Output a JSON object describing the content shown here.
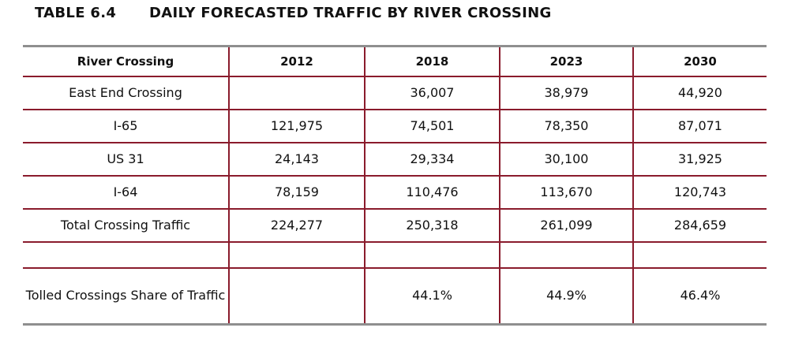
{
  "caption": {
    "number": "TABLE 6.4",
    "title": "DAILY FORECASTED TRAFFIC BY RIVER CROSSING"
  },
  "table": {
    "headers": [
      "River Crossing",
      "2012",
      "2018",
      "2023",
      "2030"
    ],
    "rows": [
      [
        "East End Crossing",
        "",
        "36,007",
        "38,979",
        "44,920"
      ],
      [
        "I-65",
        "121,975",
        "74,501",
        "78,350",
        "87,071"
      ],
      [
        "US 31",
        "24,143",
        "29,334",
        "30,100",
        "31,925"
      ],
      [
        "I-64",
        "78,159",
        "110,476",
        "113,670",
        "120,743"
      ],
      [
        "Total Crossing Traffic",
        "224,277",
        "250,318",
        "261,099",
        "284,659"
      ],
      [
        "",
        "",
        "",
        "",
        ""
      ],
      [
        "Tolled Crossings Share of Traffic",
        "",
        "44.1%",
        "44.9%",
        "46.4%"
      ]
    ]
  },
  "colors": {
    "accent": "#8a1b2c",
    "rule": "#8f8f8f"
  }
}
